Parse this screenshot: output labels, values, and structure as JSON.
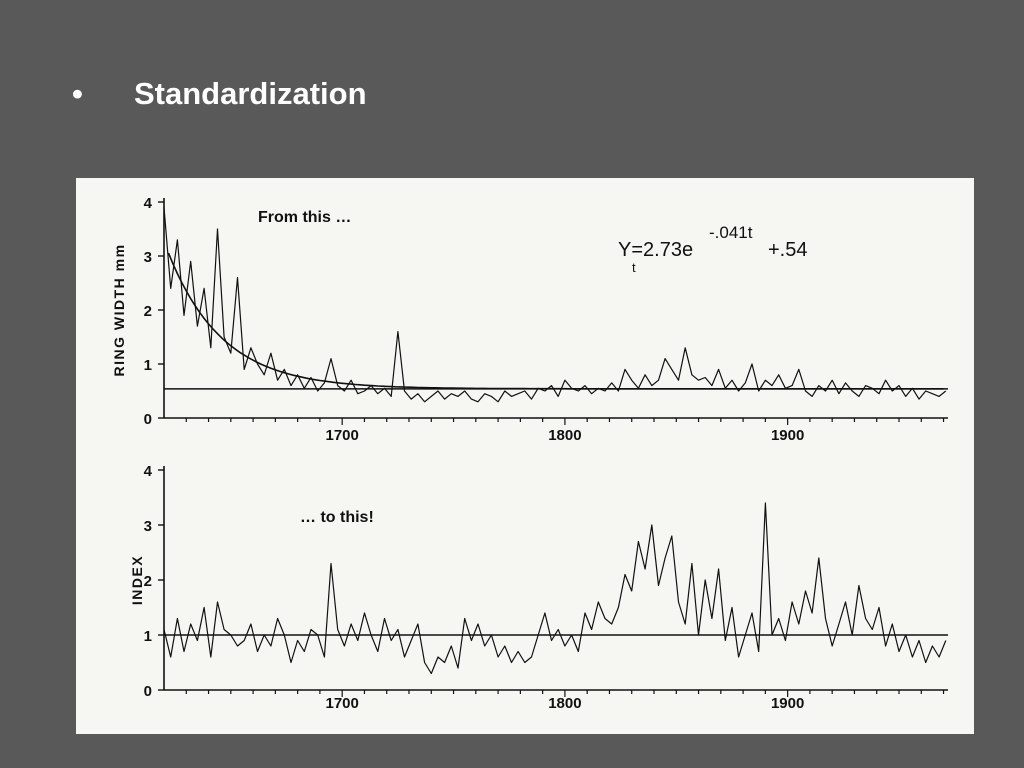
{
  "slide": {
    "bullet": "•",
    "title": "Standardization"
  },
  "colors": {
    "background": "#595959",
    "figure_bg": "#f6f6f3",
    "ink": "#111111"
  },
  "chart_data": [
    {
      "type": "line",
      "annotation": "From this …",
      "equation": "Y = 2.73e^(-.041t) + .54",
      "equation_main": "Y=2.73e",
      "equation_exp": "-.041t",
      "equation_tail": "+.54",
      "equation_sub": "t",
      "ylabel": "RING WIDTH mm",
      "ylim": [
        0,
        4
      ],
      "yticks": [
        0,
        1,
        2,
        3,
        4
      ],
      "xlim": [
        1620,
        1972
      ],
      "xticks": [
        1700,
        1800,
        1900
      ],
      "reference_line": 0.54,
      "series": [
        {
          "x": [
            1620,
            1623,
            1626,
            1629,
            1632,
            1635,
            1638,
            1641,
            1644,
            1647,
            1650,
            1653,
            1656,
            1659,
            1662,
            1665,
            1668,
            1671,
            1674,
            1677,
            1680,
            1683,
            1686,
            1689,
            1692,
            1695,
            1698,
            1701,
            1704,
            1707,
            1710,
            1713,
            1716,
            1719,
            1722,
            1725,
            1728,
            1731,
            1734,
            1737,
            1740,
            1743,
            1746,
            1749,
            1752,
            1755,
            1758,
            1761,
            1764,
            1767,
            1770,
            1773,
            1776,
            1779,
            1782,
            1785,
            1788,
            1791,
            1794,
            1797,
            1800,
            1803,
            1806,
            1809,
            1812,
            1815,
            1818,
            1821,
            1824,
            1827,
            1830,
            1833,
            1836,
            1839,
            1842,
            1845,
            1848,
            1851,
            1854,
            1857,
            1860,
            1863,
            1866,
            1869,
            1872,
            1875,
            1878,
            1881,
            1884,
            1887,
            1890,
            1893,
            1896,
            1899,
            1902,
            1905,
            1908,
            1911,
            1914,
            1917,
            1920,
            1923,
            1926,
            1929,
            1932,
            1935,
            1938,
            1941,
            1944,
            1947,
            1950,
            1953,
            1956,
            1959,
            1962,
            1965,
            1968,
            1971
          ],
          "values": [
            3.9,
            2.4,
            3.3,
            1.9,
            2.9,
            1.7,
            2.4,
            1.3,
            3.5,
            1.5,
            1.2,
            2.6,
            0.9,
            1.3,
            1.0,
            0.8,
            1.2,
            0.7,
            0.9,
            0.6,
            0.8,
            0.55,
            0.75,
            0.5,
            0.65,
            1.1,
            0.6,
            0.5,
            0.7,
            0.45,
            0.5,
            0.6,
            0.45,
            0.55,
            0.4,
            1.6,
            0.5,
            0.35,
            0.45,
            0.3,
            0.4,
            0.5,
            0.35,
            0.45,
            0.4,
            0.5,
            0.35,
            0.3,
            0.45,
            0.4,
            0.3,
            0.5,
            0.4,
            0.45,
            0.5,
            0.35,
            0.55,
            0.5,
            0.6,
            0.4,
            0.7,
            0.55,
            0.5,
            0.6,
            0.45,
            0.55,
            0.5,
            0.65,
            0.5,
            0.9,
            0.7,
            0.55,
            0.8,
            0.6,
            0.7,
            1.1,
            0.9,
            0.7,
            1.3,
            0.8,
            0.7,
            0.75,
            0.6,
            0.9,
            0.55,
            0.7,
            0.5,
            0.65,
            1.0,
            0.5,
            0.7,
            0.6,
            0.8,
            0.55,
            0.6,
            0.9,
            0.5,
            0.4,
            0.6,
            0.5,
            0.7,
            0.45,
            0.65,
            0.5,
            0.4,
            0.6,
            0.55,
            0.45,
            0.7,
            0.5,
            0.6,
            0.4,
            0.55,
            0.35,
            0.5,
            0.45,
            0.4,
            0.5
          ]
        }
      ]
    },
    {
      "type": "line",
      "annotation": "… to this!",
      "ylabel": "INDEX",
      "ylim": [
        0,
        4
      ],
      "yticks": [
        0,
        1,
        2,
        3,
        4
      ],
      "xlim": [
        1620,
        1972
      ],
      "xticks": [
        1700,
        1800,
        1900
      ],
      "reference_line": 1.0,
      "series": [
        {
          "x": [
            1620,
            1623,
            1626,
            1629,
            1632,
            1635,
            1638,
            1641,
            1644,
            1647,
            1650,
            1653,
            1656,
            1659,
            1662,
            1665,
            1668,
            1671,
            1674,
            1677,
            1680,
            1683,
            1686,
            1689,
            1692,
            1695,
            1698,
            1701,
            1704,
            1707,
            1710,
            1713,
            1716,
            1719,
            1722,
            1725,
            1728,
            1731,
            1734,
            1737,
            1740,
            1743,
            1746,
            1749,
            1752,
            1755,
            1758,
            1761,
            1764,
            1767,
            1770,
            1773,
            1776,
            1779,
            1782,
            1785,
            1788,
            1791,
            1794,
            1797,
            1800,
            1803,
            1806,
            1809,
            1812,
            1815,
            1818,
            1821,
            1824,
            1827,
            1830,
            1833,
            1836,
            1839,
            1842,
            1845,
            1848,
            1851,
            1854,
            1857,
            1860,
            1863,
            1866,
            1869,
            1872,
            1875,
            1878,
            1881,
            1884,
            1887,
            1890,
            1893,
            1896,
            1899,
            1902,
            1905,
            1908,
            1911,
            1914,
            1917,
            1920,
            1923,
            1926,
            1929,
            1932,
            1935,
            1938,
            1941,
            1944,
            1947,
            1950,
            1953,
            1956,
            1959,
            1962,
            1965,
            1968,
            1971
          ],
          "values": [
            1.1,
            0.6,
            1.3,
            0.7,
            1.2,
            0.9,
            1.5,
            0.6,
            1.6,
            1.1,
            1.0,
            0.8,
            0.9,
            1.2,
            0.7,
            1.0,
            0.8,
            1.3,
            1.0,
            0.5,
            0.9,
            0.7,
            1.1,
            1.0,
            0.6,
            2.3,
            1.1,
            0.8,
            1.2,
            0.9,
            1.4,
            1.0,
            0.7,
            1.3,
            0.9,
            1.1,
            0.6,
            0.9,
            1.2,
            0.5,
            0.3,
            0.6,
            0.5,
            0.8,
            0.4,
            1.3,
            0.9,
            1.2,
            0.8,
            1.0,
            0.6,
            0.8,
            0.5,
            0.7,
            0.5,
            0.6,
            1.0,
            1.4,
            0.9,
            1.1,
            0.8,
            1.0,
            0.7,
            1.4,
            1.1,
            1.6,
            1.3,
            1.2,
            1.5,
            2.1,
            1.8,
            2.7,
            2.2,
            3.0,
            1.9,
            2.4,
            2.8,
            1.6,
            1.2,
            2.3,
            1.0,
            2.0,
            1.3,
            2.2,
            0.9,
            1.5,
            0.6,
            1.0,
            1.4,
            0.7,
            3.4,
            1.0,
            1.3,
            0.9,
            1.6,
            1.2,
            1.8,
            1.4,
            2.4,
            1.3,
            0.8,
            1.2,
            1.6,
            1.0,
            1.9,
            1.3,
            1.1,
            1.5,
            0.8,
            1.2,
            0.7,
            1.0,
            0.6,
            0.9,
            0.5,
            0.8,
            0.6,
            0.9
          ]
        }
      ]
    }
  ]
}
